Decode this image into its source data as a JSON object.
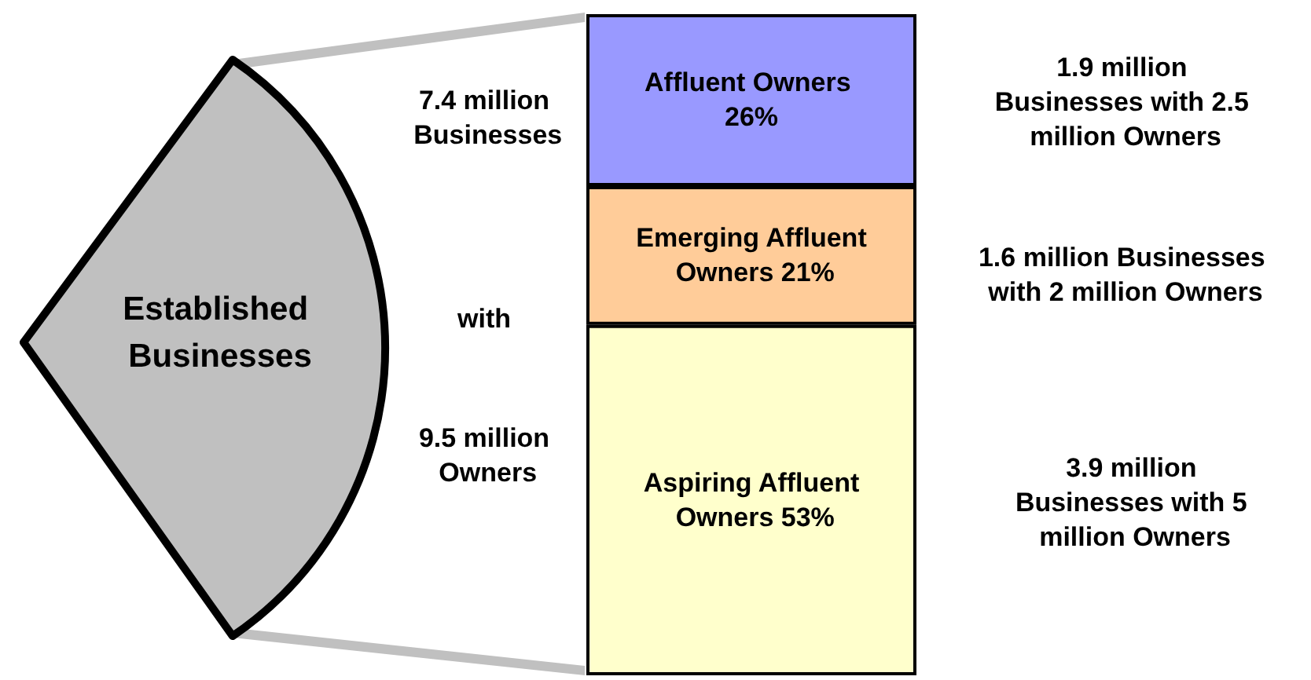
{
  "chart_data": {
    "type": "bar",
    "stacked": true,
    "categories": [
      null
    ],
    "ylim": [
      0,
      100
    ],
    "tick_labels": false,
    "grid": false,
    "legend": false,
    "series": [
      {
        "name": "Aspiring Affluent Owners",
        "color": "#ffffcc",
        "values": [
          53
        ],
        "value_labels": [
          "53%"
        ]
      },
      {
        "name": "Emerging Affluent Owners",
        "color": "#ffcc99",
        "values": [
          21
        ],
        "value_labels": [
          "21%"
        ]
      },
      {
        "name": "Affluent Owners",
        "color": "#9999ff",
        "values": [
          26
        ],
        "value_labels": [
          "26%"
        ]
      }
    ],
    "annotations": [
      "Established Businesses",
      "7.4 million Businesses",
      "with",
      "9.5 million Owners",
      "1.9 million Businesses with 2.5 million Owners",
      "1.6 million Businesses with 2 million Owners",
      "3.9 million Businesses with 5 million Owners"
    ]
  }
}
